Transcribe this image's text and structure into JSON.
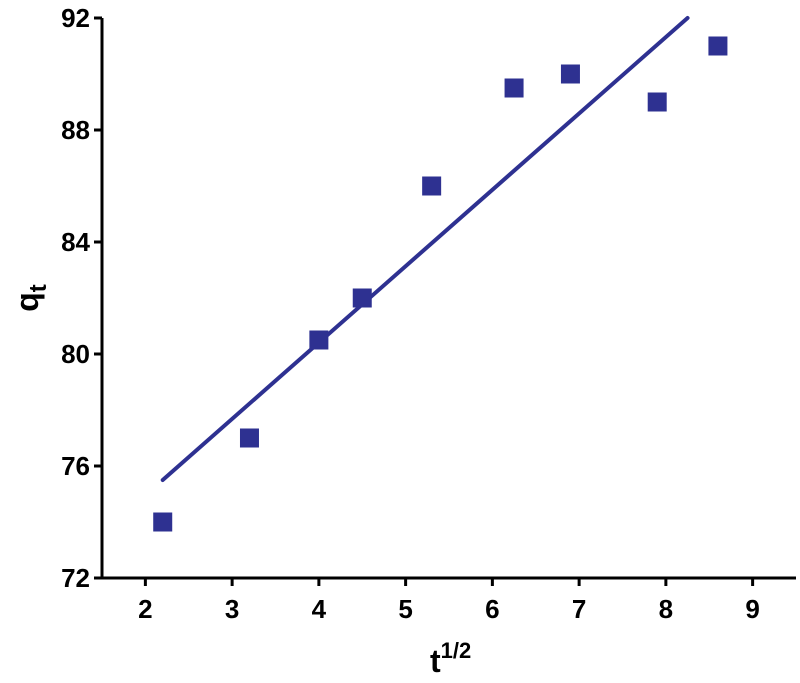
{
  "chart_data": {
    "type": "scatter",
    "title": "",
    "xlabel": "t",
    "xlabel_superscript": "1/2",
    "ylabel": "q",
    "ylabel_subscript": "t",
    "xlim": [
      1.5,
      9.5
    ],
    "ylim": [
      72,
      92
    ],
    "x_ticks": [
      2,
      3,
      4,
      5,
      6,
      7,
      8,
      9
    ],
    "y_ticks": [
      72,
      76,
      80,
      84,
      88,
      92
    ],
    "grid": false,
    "legend": "none",
    "series": [
      {
        "x": [
          2.2,
          3.2,
          4.0,
          4.5,
          5.3,
          6.25,
          6.9,
          7.9,
          8.6
        ],
        "y": [
          74.0,
          77.0,
          80.5,
          82.0,
          86.0,
          89.5,
          90.0,
          89.0,
          91.0
        ],
        "marker": "square",
        "color": "#2e3191"
      }
    ],
    "fit_line": {
      "x": [
        2.2,
        8.25
      ],
      "y": [
        75.5,
        92.0
      ],
      "color": "#2e3191"
    }
  }
}
